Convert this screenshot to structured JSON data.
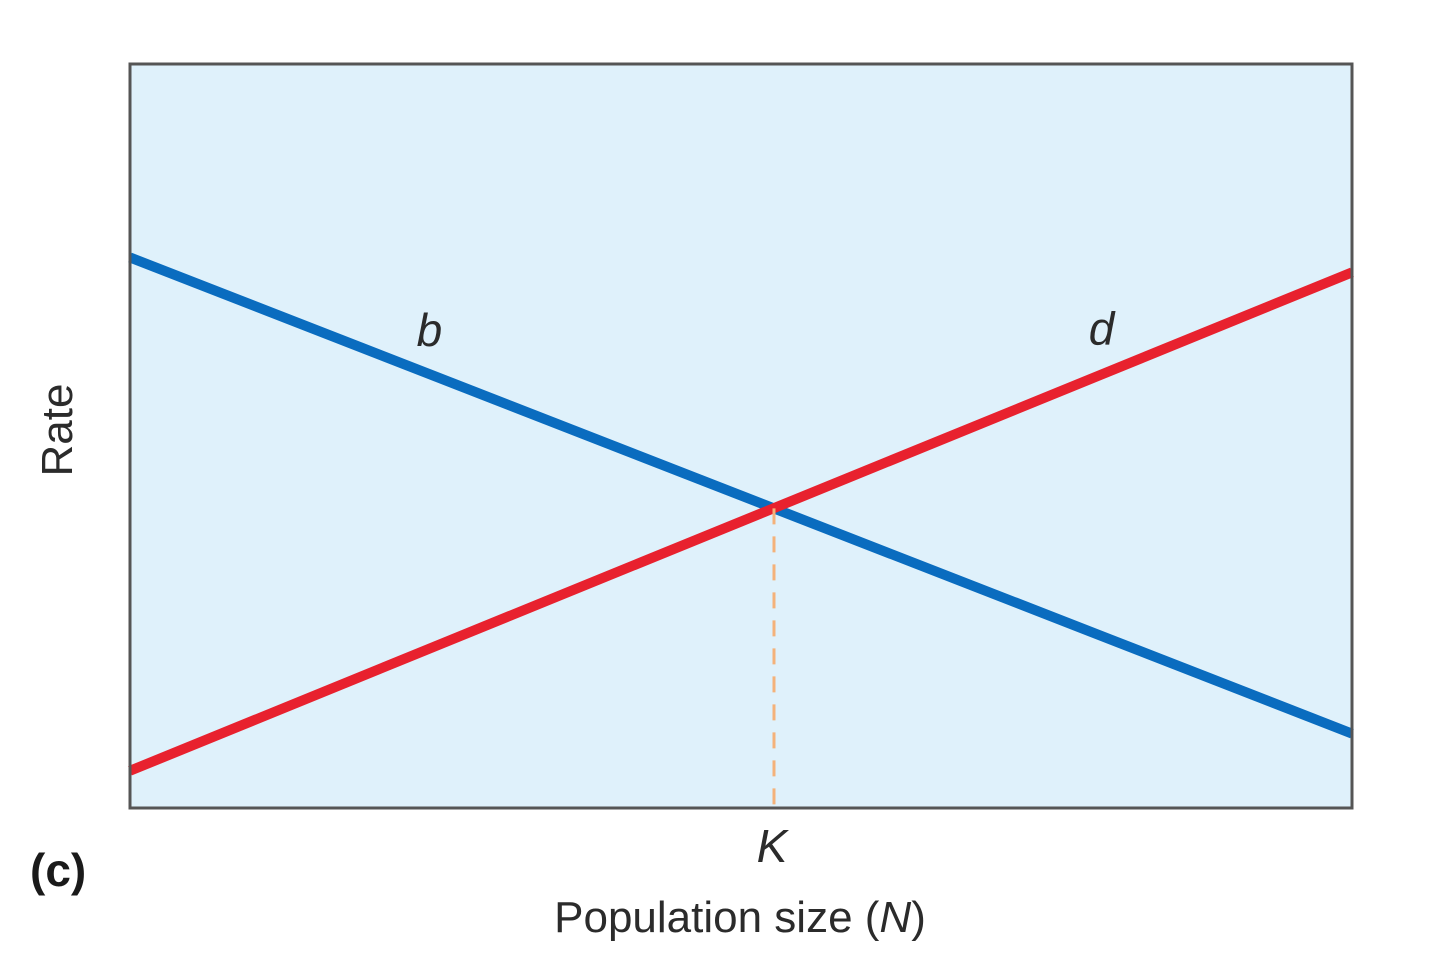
{
  "panel_label": "(c)",
  "colors": {
    "plot_background": "#dff1fb",
    "frame": "#555555",
    "birth_rate": "#0a6cbf",
    "death_rate": "#e8212e",
    "k_marker": "#f4b27a"
  },
  "chart_data": {
    "type": "line",
    "xlabel_prefix": "Population size (",
    "xlabel_var": "N",
    "xlabel_suffix": ")",
    "ylabel": "Rate",
    "xlim": [
      0,
      1
    ],
    "ylim": [
      0,
      1
    ],
    "grid": false,
    "series": [
      {
        "name": "b",
        "color": "#0a6cbf",
        "x": [
          0,
          1
        ],
        "y": [
          0.74,
          0.1
        ]
      },
      {
        "name": "d",
        "color": "#e8212e",
        "x": [
          0,
          1
        ],
        "y": [
          0.05,
          0.72
        ]
      }
    ],
    "annotations": [
      {
        "label": "K",
        "x": 0.527,
        "style": "dashed-vertical",
        "color": "#f4b27a"
      }
    ]
  }
}
